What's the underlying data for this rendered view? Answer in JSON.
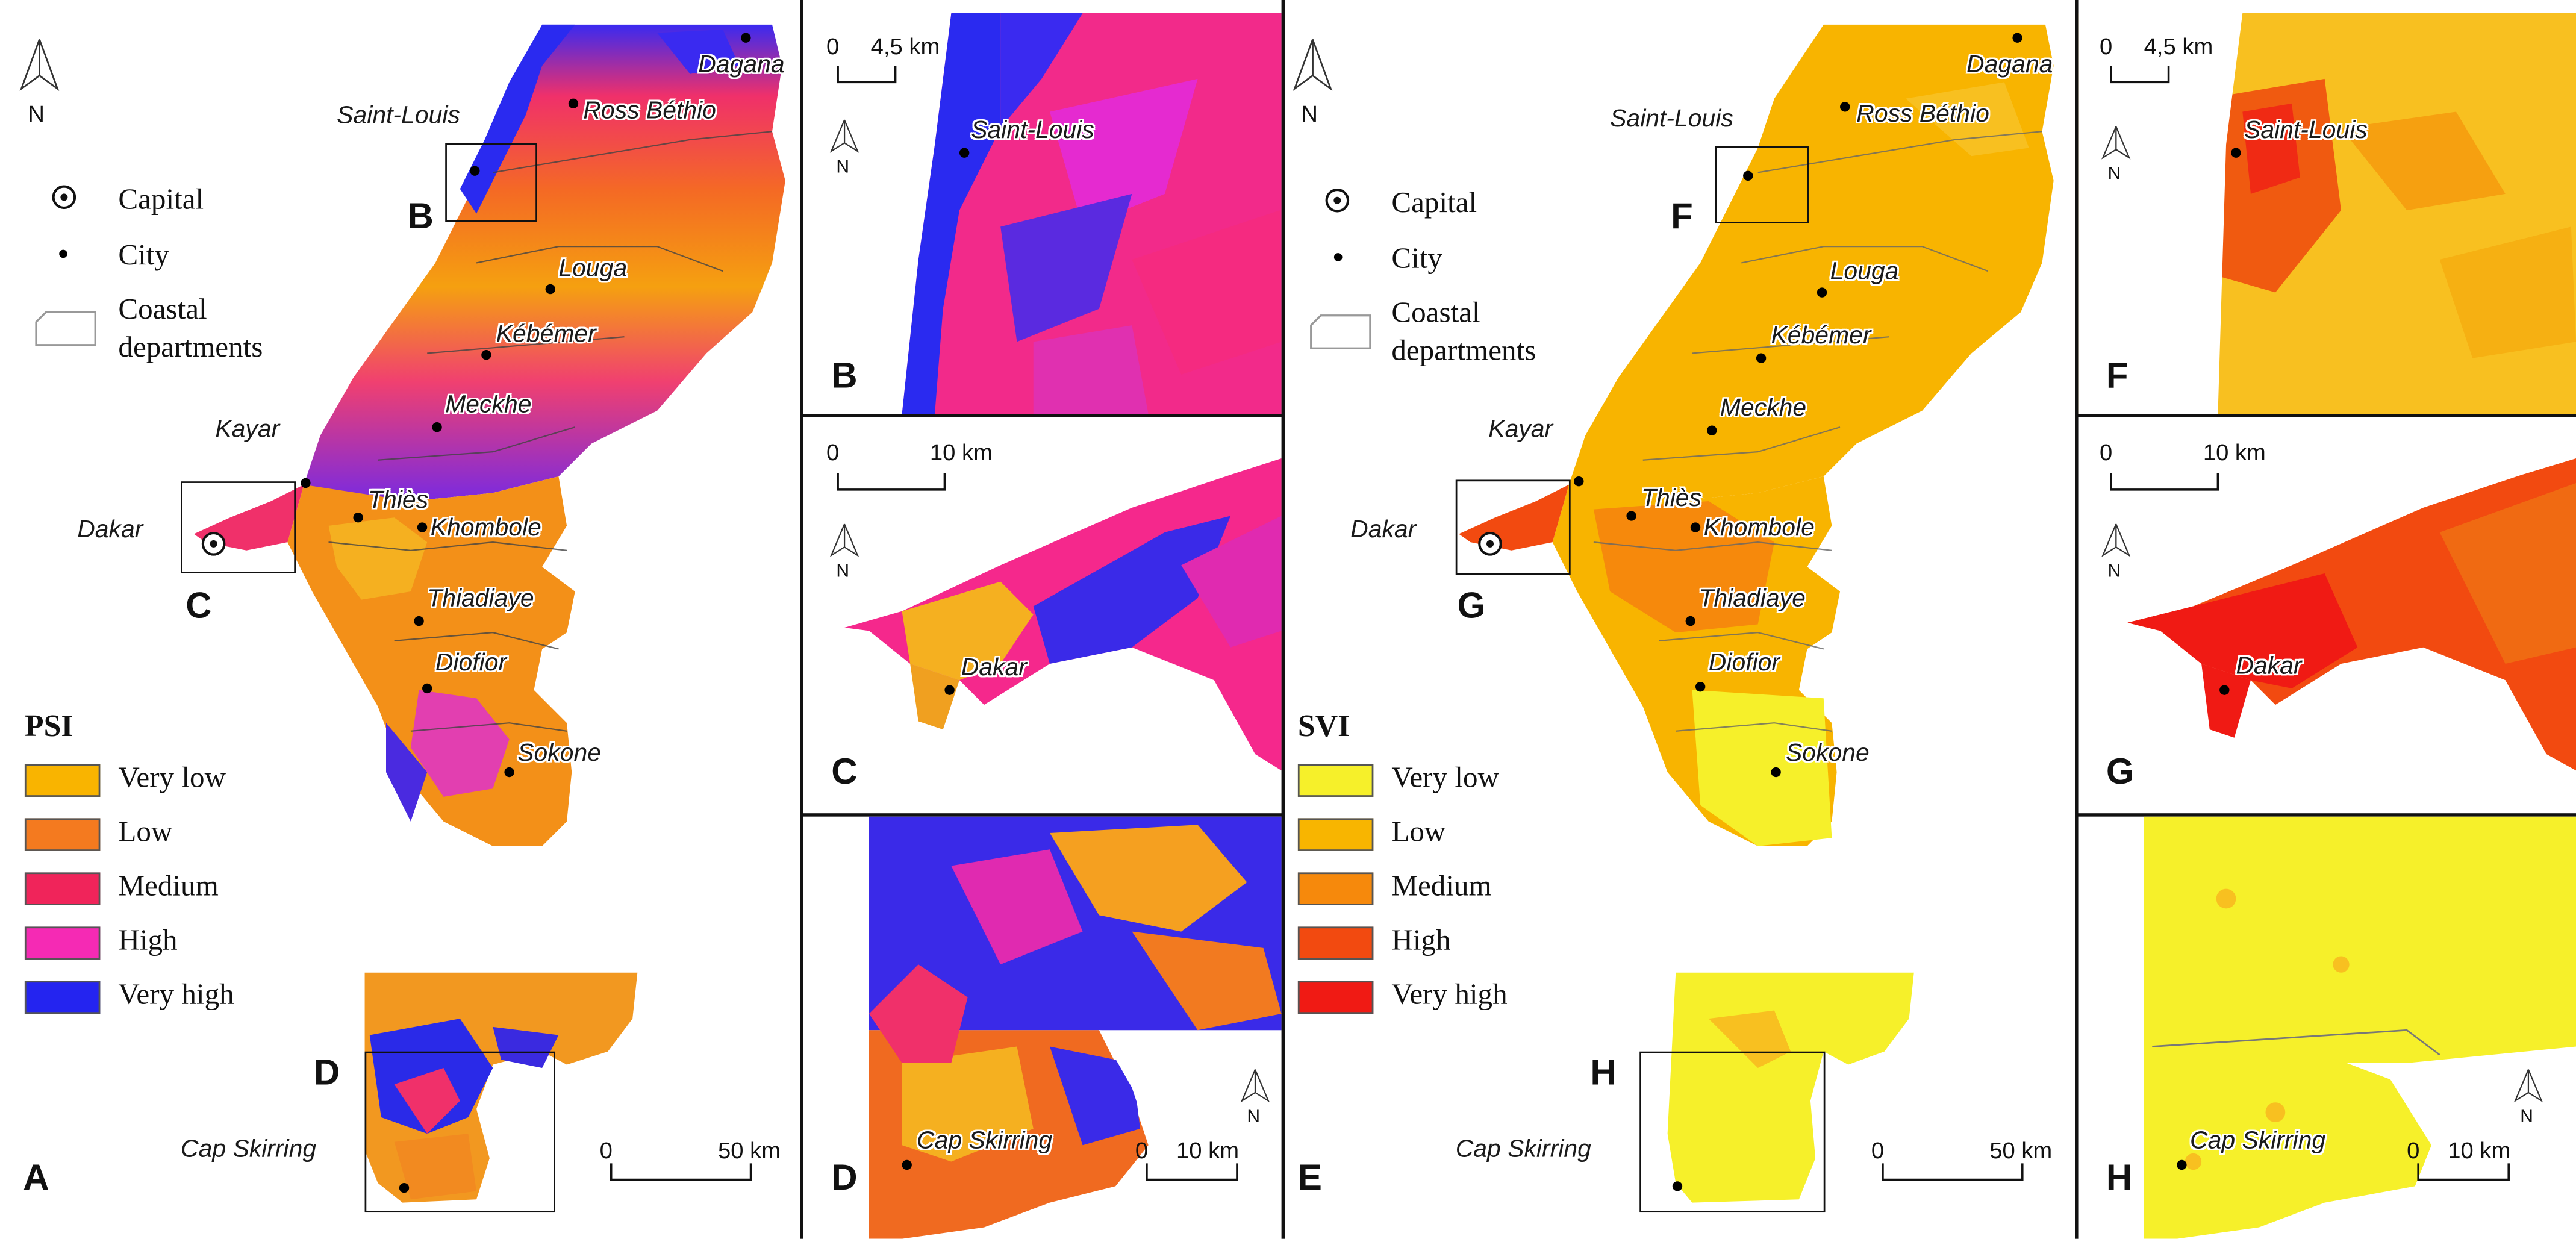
{
  "legend": {
    "capital": "Capital",
    "city": "City",
    "coastal_line1": "Coastal",
    "coastal_line2": "departments"
  },
  "psi": {
    "title": "PSI",
    "classes": [
      {
        "label": "Very low",
        "color": "#f9b400"
      },
      {
        "label": "Low",
        "color": "#f47a1f"
      },
      {
        "label": "Medium",
        "color": "#f0245a"
      },
      {
        "label": "High",
        "color": "#f52ab4"
      },
      {
        "label": "Very high",
        "color": "#2424f0"
      }
    ]
  },
  "svi": {
    "title": "SVI",
    "classes": [
      {
        "label": "Very low",
        "color": "#f6f02a"
      },
      {
        "label": "Low",
        "color": "#f8b500"
      },
      {
        "label": "Medium",
        "color": "#f6890c"
      },
      {
        "label": "High",
        "color": "#f24a10"
      },
      {
        "label": "Very high",
        "color": "#f01a14"
      }
    ]
  },
  "panels": {
    "A": "A",
    "B": "B",
    "C": "C",
    "D": "D",
    "E": "E",
    "F": "F",
    "G": "G",
    "H": "H"
  },
  "north": "N",
  "cities": {
    "dagana": "Dagana",
    "ross_bethio": "Ross Béthio",
    "saint_louis": "Saint-Louis",
    "louga": "Louga",
    "kebemer": "Kébémer",
    "meckhe": "Meckhe",
    "kayar": "Kayar",
    "dakar": "Dakar",
    "thies": "Thiès",
    "khombole": "Khombole",
    "thiadiaye": "Thiadiaye",
    "diofior": "Diofior",
    "sokone": "Sokone",
    "cap_skirring": "Cap Skirring"
  },
  "scales": {
    "zero": "0",
    "km45": "4,5 km",
    "km10": "10 km",
    "km50": "50 km"
  }
}
